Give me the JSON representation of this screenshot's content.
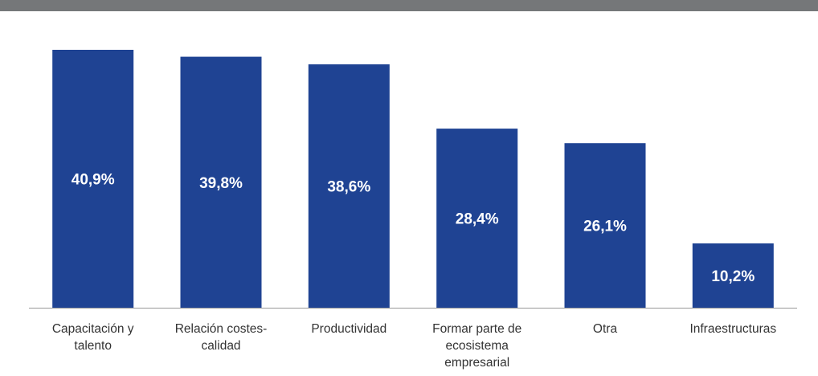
{
  "colors": {
    "bar": "#1f4393",
    "label": "#ffffff",
    "category_text": "#333333",
    "axis": "#999999",
    "top_rule": "#757779"
  },
  "chart_data": {
    "type": "bar",
    "categories": [
      "Capacitación y talento",
      "Relación costes-calidad",
      "Productividad",
      "Formar parte de ecosistema empresarial",
      "Otra",
      "Infraestructuras"
    ],
    "category_lines": [
      [
        "Capacitación y",
        "talento"
      ],
      [
        "Relación costes-",
        "calidad"
      ],
      [
        "Productividad"
      ],
      [
        "Formar parte de",
        "ecosistema",
        "empresarial"
      ],
      [
        "Otra"
      ],
      [
        "Infraestructuras"
      ]
    ],
    "values": [
      40.9,
      39.8,
      38.6,
      28.4,
      26.1,
      10.2
    ],
    "value_labels": [
      "40,9%",
      "39,8%",
      "38,6%",
      "28,4%",
      "26,1%",
      "10,2%"
    ],
    "unit": "%",
    "ylim": [
      0,
      41.5
    ],
    "grid": false,
    "legend": "none"
  }
}
